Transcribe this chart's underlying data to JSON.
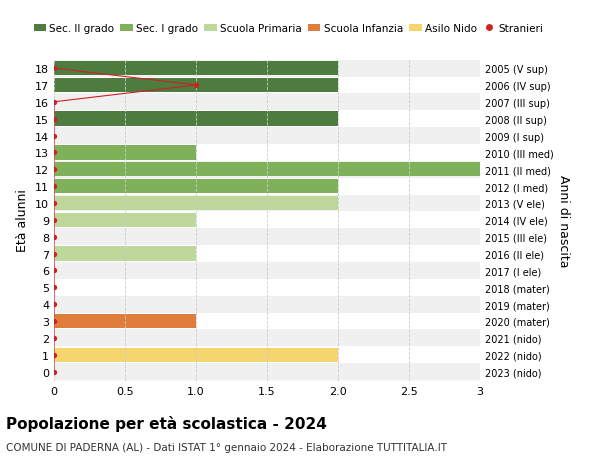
{
  "ages": [
    18,
    17,
    16,
    15,
    14,
    13,
    12,
    11,
    10,
    9,
    8,
    7,
    6,
    5,
    4,
    3,
    2,
    1,
    0
  ],
  "right_labels": [
    "2005 (V sup)",
    "2006 (IV sup)",
    "2007 (III sup)",
    "2008 (II sup)",
    "2009 (I sup)",
    "2010 (III med)",
    "2011 (II med)",
    "2012 (I med)",
    "2013 (V ele)",
    "2014 (IV ele)",
    "2015 (III ele)",
    "2016 (II ele)",
    "2017 (I ele)",
    "2018 (mater)",
    "2019 (mater)",
    "2020 (mater)",
    "2021 (nido)",
    "2022 (nido)",
    "2023 (nido)"
  ],
  "bar_values": [
    2,
    2,
    0,
    2,
    0,
    1,
    3,
    2,
    2,
    1,
    0,
    1,
    0,
    0,
    0,
    1,
    0,
    2,
    0
  ],
  "bar_colors": [
    "#4d7c3e",
    "#4d7c3e",
    "#4d7c3e",
    "#4d7c3e",
    "#4d7c3e",
    "#7fb05a",
    "#7fb05a",
    "#7fb05a",
    "#bdd89a",
    "#bdd89a",
    "#bdd89a",
    "#bdd89a",
    "#bdd89a",
    "#e07d3a",
    "#e07d3a",
    "#e07d3a",
    "#f5d56e",
    "#f5d56e",
    "#f5d56e"
  ],
  "stranieri_values": [
    0,
    1,
    0,
    0,
    0,
    0,
    0,
    0,
    0,
    0,
    0,
    0,
    0,
    0,
    0,
    0,
    0,
    0,
    0
  ],
  "title": "Popolazione per età scolastica - 2024",
  "subtitle": "COMUNE DI PADERNA (AL) - Dati ISTAT 1° gennaio 2024 - Elaborazione TUTTITALIA.IT",
  "ylabel_left": "Età alunni",
  "ylabel_right": "Anni di nascita",
  "xlim": [
    0,
    3.0
  ],
  "xticks": [
    0,
    0.5,
    1.0,
    1.5,
    2.0,
    2.5,
    3.0
  ],
  "legend_labels": [
    "Sec. II grado",
    "Sec. I grado",
    "Scuola Primaria",
    "Scuola Infanzia",
    "Asilo Nido",
    "Stranieri"
  ],
  "legend_colors": [
    "#4d7c3e",
    "#7fb05a",
    "#bdd89a",
    "#e07d3a",
    "#f5d56e",
    "#cc2222"
  ],
  "bg_color": "#ffffff",
  "row_bg_even": "#f0f0f0",
  "row_bg_odd": "#ffffff",
  "bar_height": 0.85,
  "stranieri_line_color": "#cc2222",
  "stranieri_dot_color": "#cc2222",
  "grid_color": "#cccccc"
}
